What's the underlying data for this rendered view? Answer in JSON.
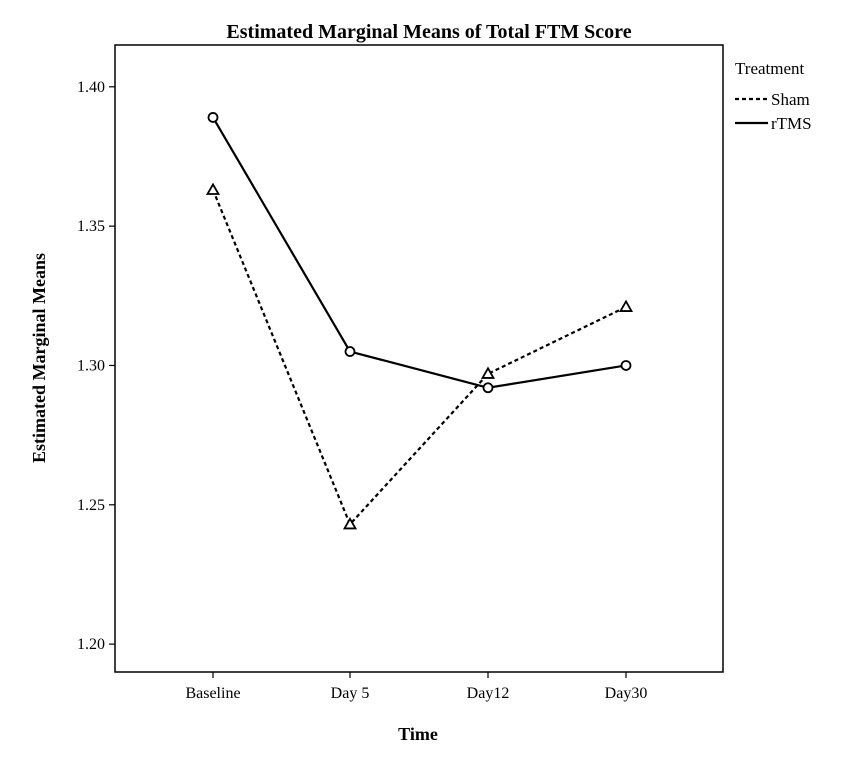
{
  "chart_data": {
    "type": "line",
    "title": "Estimated Marginal Means of Total FTM Score",
    "xlabel": "Time",
    "ylabel": "Estimated Marginal Means",
    "categories": [
      "Baseline",
      "Day 5",
      "Day12",
      "Day30"
    ],
    "ylim": [
      1.19,
      1.415
    ],
    "yticks": [
      "1.20",
      "1.25",
      "1.30",
      "1.35",
      "1.40"
    ],
    "grid": false,
    "legend": {
      "title": "Treatment",
      "placement": "right-top"
    },
    "series": [
      {
        "name": "Sham",
        "line_style": "dashed",
        "marker": "triangle",
        "color": "#000000",
        "values": [
          1.363,
          1.243,
          1.297,
          1.321
        ]
      },
      {
        "name": "rTMS",
        "line_style": "solid",
        "marker": "circle",
        "color": "#000000",
        "values": [
          1.389,
          1.305,
          1.292,
          1.3
        ]
      }
    ]
  }
}
